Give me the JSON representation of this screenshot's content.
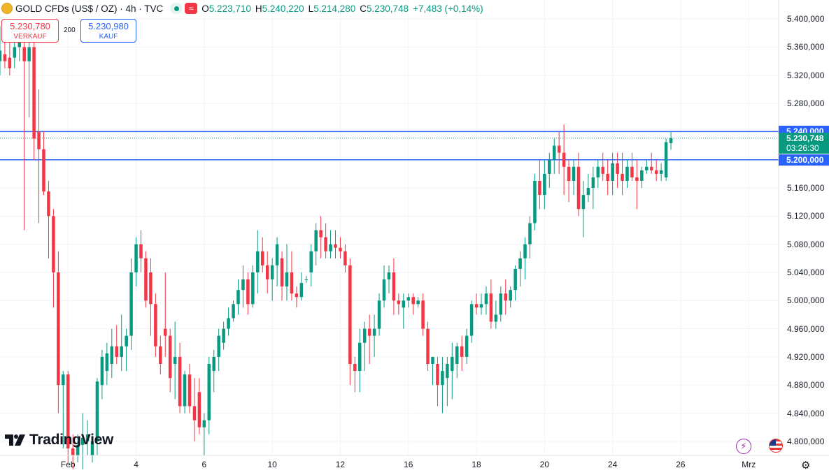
{
  "header": {
    "symbol": "GOLD CFDs (US$ / OZ) · 4h · TVC",
    "open_label": "O",
    "open": "5.223,710",
    "high_label": "H",
    "high": "5.240,220",
    "low_label": "L",
    "low": "5.214,280",
    "close_label": "C",
    "close": "5.230,748",
    "change": "+7,483 (+0,14%)",
    "wave_glyph": "≈"
  },
  "trade": {
    "sell_price": "5.230,780",
    "sell_label": "VERKAUF",
    "spread": "200",
    "buy_price": "5.230,980",
    "buy_label": "KAUF"
  },
  "branding": {
    "logo_text": "TradingView"
  },
  "price_tags": {
    "upper_line": "5.240,000",
    "current_price": "5.230,748",
    "countdown": "03:26:30",
    "lower_line": "5.200,000"
  },
  "colors": {
    "up": "#089981",
    "down": "#f23645",
    "line": "#2962ff",
    "grid": "#f0f3fa"
  },
  "icons": {
    "bolt": "bolt-icon",
    "flag": "us-flag-icon",
    "settings": "gear-icon",
    "symbol": "gold-coin-icon"
  },
  "chart_data": {
    "type": "candlestick",
    "title": "GOLD CFDs (US$ / OZ) · 4h · TVC",
    "ylim": [
      4780,
      5420
    ],
    "y_ticks": [
      4800,
      4840,
      4880,
      4920,
      4960,
      5000,
      5040,
      5080,
      5120,
      5160,
      5200,
      5240,
      5280,
      5320,
      5360,
      5400
    ],
    "y_tick_labels": [
      "4.800,000",
      "4.840,000",
      "4.880,000",
      "4.920,000",
      "4.960,000",
      "5.000,000",
      "5.040,000",
      "5.080,000",
      "5.120,000",
      "5.160,000",
      "5.200,000",
      "5.240,000",
      "5.280,000",
      "5.320,000",
      "5.360,000",
      "5.400,000"
    ],
    "x_ticks": [
      {
        "index": 15,
        "label": "Feb"
      },
      {
        "index": 29,
        "label": "4"
      },
      {
        "index": 43,
        "label": "6"
      },
      {
        "index": 57,
        "label": "10"
      },
      {
        "index": 71,
        "label": "12"
      },
      {
        "index": 85,
        "label": "16"
      },
      {
        "index": 99,
        "label": "18"
      },
      {
        "index": 113,
        "label": "20"
      },
      {
        "index": 127,
        "label": "24"
      },
      {
        "index": 141,
        "label": "26"
      },
      {
        "index": 155,
        "label": "Mrz"
      }
    ],
    "horizontal_lines": [
      5240,
      5200
    ],
    "current_price": 5230.748,
    "candles": [
      [
        5280,
        5360,
        5270,
        5360
      ],
      [
        5340,
        5390,
        5320,
        5355
      ],
      [
        5350,
        5380,
        5330,
        5340
      ],
      [
        5345,
        5370,
        5320,
        5330
      ],
      [
        5345,
        5380,
        5330,
        5360
      ],
      [
        5360,
        5395,
        5340,
        5375
      ],
      [
        5360,
        5370,
        5100,
        5340
      ],
      [
        5340,
        5380,
        5260,
        5360
      ],
      [
        5360,
        5380,
        5200,
        5230
      ],
      [
        5240,
        5300,
        5110,
        5215
      ],
      [
        5215,
        5240,
        5150,
        5155
      ],
      [
        5155,
        5170,
        5060,
        5120
      ],
      [
        5120,
        5130,
        4990,
        5040
      ],
      [
        5040,
        5070,
        4840,
        4880
      ],
      [
        4880,
        4900,
        4790,
        4895
      ],
      [
        4895,
        4900,
        4770,
        4790
      ],
      [
        4790,
        4810,
        4760,
        4780
      ],
      [
        4780,
        4810,
        4770,
        4795
      ],
      [
        4795,
        4840,
        4760,
        4805
      ],
      [
        4800,
        4830,
        4780,
        4810
      ],
      [
        4780,
        4810,
        4770,
        4800
      ],
      [
        4800,
        4890,
        4780,
        4885
      ],
      [
        4880,
        4930,
        4860,
        4920
      ],
      [
        4900,
        4940,
        4880,
        4925
      ],
      [
        4910,
        4960,
        4890,
        4935
      ],
      [
        4935,
        4965,
        4910,
        4920
      ],
      [
        4920,
        4980,
        4900,
        4935
      ],
      [
        4935,
        4960,
        4900,
        4950
      ],
      [
        4950,
        5060,
        4930,
        5040
      ],
      [
        5040,
        5090,
        5020,
        5080
      ],
      [
        5080,
        5100,
        5040,
        5060
      ],
      [
        5060,
        5070,
        4990,
        5000
      ],
      [
        5040,
        5060,
        4950,
        4995
      ],
      [
        4995,
        5010,
        4920,
        4935
      ],
      [
        4935,
        4950,
        4895,
        4910
      ],
      [
        4960,
        5040,
        4920,
        4950
      ],
      [
        4950,
        4960,
        4870,
        4890
      ],
      [
        4910,
        4970,
        4860,
        4920
      ],
      [
        4920,
        4940,
        4840,
        4850
      ],
      [
        4850,
        4900,
        4840,
        4895
      ],
      [
        4895,
        4910,
        4840,
        4850
      ],
      [
        4850,
        4890,
        4800,
        4830
      ],
      [
        4870,
        4890,
        4810,
        4820
      ],
      [
        4820,
        4840,
        4780,
        4830
      ],
      [
        4830,
        4920,
        4810,
        4910
      ],
      [
        4900,
        4930,
        4870,
        4920
      ],
      [
        4920,
        4960,
        4900,
        4950
      ],
      [
        4940,
        4970,
        4930,
        4960
      ],
      [
        4960,
        4990,
        4950,
        4975
      ],
      [
        4975,
        5000,
        4970,
        4995
      ],
      [
        4995,
        5030,
        4980,
        5015
      ],
      [
        5015,
        5050,
        4990,
        5030
      ],
      [
        5030,
        5040,
        4980,
        4995
      ],
      [
        4995,
        5050,
        4990,
        5040
      ],
      [
        5040,
        5100,
        5010,
        5070
      ],
      [
        5070,
        5090,
        5040,
        5050
      ],
      [
        5050,
        5070,
        5010,
        5030
      ],
      [
        5030,
        5060,
        5000,
        5050
      ],
      [
        5050,
        5090,
        5020,
        5080
      ],
      [
        5060,
        5070,
        5000,
        5020
      ],
      [
        5020,
        5080,
        5000,
        5040
      ],
      [
        5040,
        5070,
        5000,
        5010
      ],
      [
        5010,
        5020,
        4990,
        5005
      ],
      [
        5005,
        5040,
        5000,
        5025
      ],
      [
        5030,
        5035,
        5025,
        5030
      ],
      [
        5040,
        5080,
        5020,
        5070
      ],
      [
        5070,
        5110,
        5050,
        5100
      ],
      [
        5100,
        5120,
        5060,
        5090
      ],
      [
        5090,
        5110,
        5060,
        5070
      ],
      [
        5070,
        5100,
        5060,
        5080
      ],
      [
        5080,
        5100,
        5060,
        5075
      ],
      [
        5075,
        5090,
        5060,
        5070
      ],
      [
        5070,
        5080,
        5040,
        5050
      ],
      [
        5050,
        5060,
        4880,
        4910
      ],
      [
        4910,
        4920,
        4870,
        4900
      ],
      [
        4900,
        4960,
        4870,
        4940
      ],
      [
        4940,
        4970,
        4900,
        4960
      ],
      [
        4960,
        4980,
        4910,
        4950
      ],
      [
        4950,
        4980,
        4920,
        4960
      ],
      [
        4960,
        5010,
        4950,
        5000
      ],
      [
        5000,
        5050,
        4990,
        5030
      ],
      [
        5030,
        5050,
        5010,
        5040
      ],
      [
        5040,
        5060,
        4980,
        5000
      ],
      [
        5000,
        5010,
        4980,
        4995
      ],
      [
        4990,
        5010,
        4960,
        5000
      ],
      [
        5000,
        5010,
        4990,
        5005
      ],
      [
        5005,
        5010,
        4980,
        4995
      ],
      [
        4995,
        5005,
        4990,
        5000
      ],
      [
        5000,
        5010,
        4950,
        4960
      ],
      [
        4960,
        4970,
        4900,
        4910
      ],
      [
        4910,
        4920,
        4880,
        4920
      ],
      [
        4910,
        4920,
        4850,
        4880
      ],
      [
        4880,
        4920,
        4840,
        4900
      ],
      [
        4890,
        4920,
        4850,
        4910
      ],
      [
        4900,
        4940,
        4860,
        4920
      ],
      [
        4910,
        4940,
        4890,
        4935
      ],
      [
        4935,
        4950,
        4900,
        4920
      ],
      [
        4920,
        4960,
        4910,
        4950
      ],
      [
        4950,
        5000,
        4940,
        4995
      ],
      [
        4995,
        5010,
        4980,
        4990
      ],
      [
        4990,
        5010,
        4980,
        4995
      ],
      [
        4995,
        5020,
        4980,
        5010
      ],
      [
        5010,
        5030,
        4960,
        4970
      ],
      [
        4970,
        5000,
        4960,
        4980
      ],
      [
        4980,
        5020,
        4970,
        5010
      ],
      [
        5010,
        5030,
        4980,
        5000
      ],
      [
        5000,
        5020,
        4990,
        5015
      ],
      [
        5015,
        5050,
        5000,
        5045
      ],
      [
        5045,
        5070,
        5020,
        5060
      ],
      [
        5060,
        5090,
        5030,
        5080
      ],
      [
        5080,
        5120,
        5060,
        5110
      ],
      [
        5110,
        5180,
        5100,
        5170
      ],
      [
        5170,
        5200,
        5130,
        5150
      ],
      [
        5150,
        5200,
        5130,
        5180
      ],
      [
        5180,
        5210,
        5160,
        5200
      ],
      [
        5200,
        5230,
        5180,
        5220
      ],
      [
        5220,
        5240,
        5180,
        5210
      ],
      [
        5210,
        5250,
        5150,
        5190
      ],
      [
        5190,
        5200,
        5140,
        5170
      ],
      [
        5170,
        5200,
        5150,
        5190
      ],
      [
        5190,
        5210,
        5120,
        5130
      ],
      [
        5130,
        5170,
        5090,
        5150
      ],
      [
        5150,
        5180,
        5140,
        5160
      ],
      [
        5160,
        5190,
        5130,
        5175
      ],
      [
        5175,
        5200,
        5160,
        5190
      ],
      [
        5190,
        5210,
        5170,
        5180
      ],
      [
        5180,
        5200,
        5150,
        5170
      ],
      [
        5170,
        5210,
        5150,
        5195
      ],
      [
        5195,
        5210,
        5160,
        5180
      ],
      [
        5180,
        5210,
        5150,
        5170
      ],
      [
        5170,
        5200,
        5160,
        5190
      ],
      [
        5190,
        5210,
        5170,
        5175
      ],
      [
        5175,
        5200,
        5130,
        5170
      ],
      [
        5170,
        5190,
        5160,
        5185
      ],
      [
        5185,
        5200,
        5180,
        5190
      ],
      [
        5190,
        5210,
        5180,
        5185
      ],
      [
        5185,
        5200,
        5170,
        5180
      ],
      [
        5180,
        5195,
        5170,
        5185
      ],
      [
        5175,
        5230,
        5170,
        5225
      ],
      [
        5223.71,
        5240.22,
        5214.28,
        5230.748
      ]
    ]
  }
}
